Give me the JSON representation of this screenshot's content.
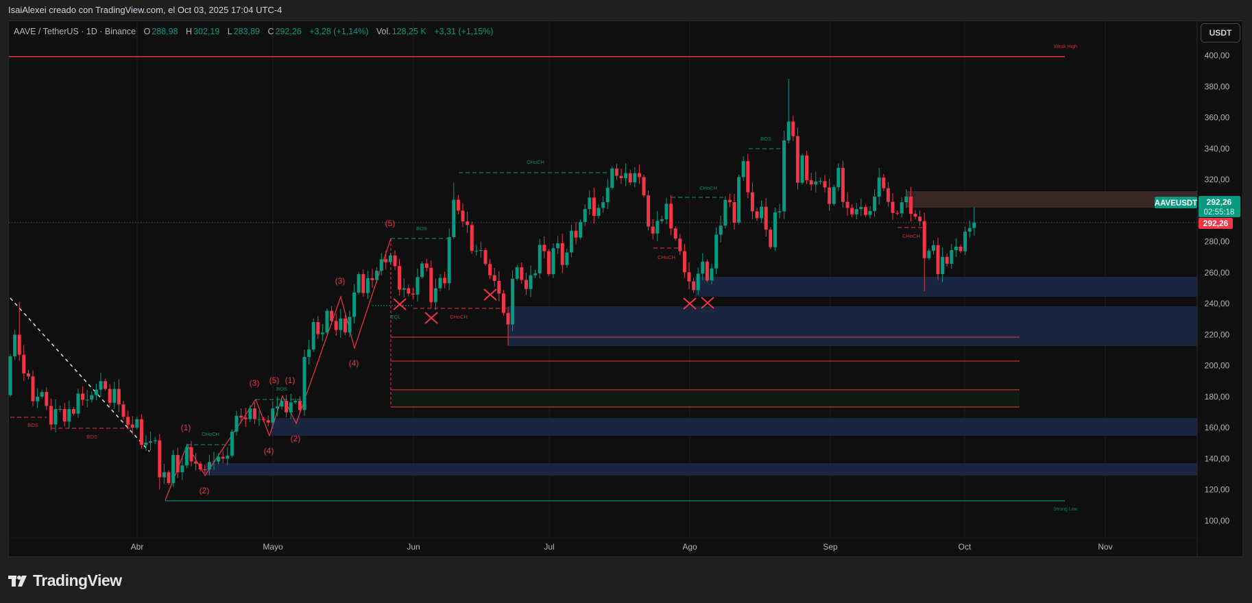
{
  "credit": "IsaiAlexei creado con TradingView.com, el Oct 03, 2025 17:04 UTC-4",
  "legend": {
    "symbol": "AAVE / TetherUS · 1D · Binance",
    "o_label": "O",
    "o": "288,98",
    "h_label": "H",
    "h": "302,19",
    "l_label": "L",
    "l": "283,89",
    "c_label": "C",
    "c": "292,26",
    "change": "+3,28 (+1,14%)",
    "vol_label": "Vol.",
    "vol": "128,25 K",
    "vol_change": "+3,31 (+1,15%)"
  },
  "currency_button": "USDT",
  "price_axis": {
    "ticks": [
      "400,00",
      "380,00",
      "360,00",
      "340,00",
      "320,00",
      "300,00",
      "280,00",
      "260,00",
      "240,00",
      "220,00",
      "200,00",
      "180,00",
      "160,00",
      "140,00",
      "120,00",
      "100,00"
    ],
    "symbol_tag": "AAVEUSDT",
    "last_price": "292,26",
    "countdown": "02:55:18",
    "prev_price": "292,26"
  },
  "brand": "TradingView",
  "colors": {
    "up": "#089981",
    "down": "#f23645",
    "zone_blue": "#1a2540",
    "zone_brown": "#3b2626",
    "zone_green": "#0f1a14"
  },
  "chart_data": {
    "type": "candlestick",
    "symbol": "AAVEUSDT",
    "interval": "1D",
    "first_date": "2025-03-04",
    "last_date": "2025-10-03",
    "x_tick_labels": [
      "Abr",
      "Mayo",
      "Jun",
      "Jul",
      "Ago",
      "Sep",
      "Oct",
      "Nov"
    ],
    "ylim": [
      100,
      400
    ],
    "first_open": 181,
    "close": [
      206,
      220,
      207,
      195,
      193,
      177,
      180,
      183,
      174,
      162,
      172,
      172,
      164,
      172,
      169,
      182,
      178,
      178,
      181,
      184.5,
      190,
      185,
      176,
      185,
      175,
      167,
      162,
      160,
      165.5,
      148.9,
      150.3,
      151.2,
      151.8,
      128,
      131.2,
      124.3,
      142.4,
      131.2,
      135.6,
      147.4,
      138.2,
      136.8,
      133.1,
      133,
      137.8,
      138.2,
      141.2,
      140,
      142,
      157.4,
      167.7,
      166.5,
      165.5,
      172.4,
      165.5,
      165.5,
      164.8,
      163.3,
      172.4,
      173.6,
      177.3,
      169.9,
      176.3,
      177.3,
      171.4,
      205.6,
      210.4,
      228.1,
      220.3,
      221.3,
      235.4,
      228.8,
      223,
      230.3,
      221.4,
      231.5,
      247.1,
      259,
      246.8,
      256.4,
      255.2,
      261.2,
      268.6,
      266.7,
      271.1,
      264.2,
      249,
      249.9,
      246.5,
      245.8,
      257.1,
      265.9,
      263.1,
      241,
      249.9,
      256.6,
      253.1,
      282.9,
      307,
      300,
      293,
      290.7,
      274,
      274,
      274.5,
      265.6,
      258.3,
      254.6,
      246.5,
      234,
      226.6,
      256,
      263.4,
      255.3,
      249.4,
      258.3,
      259.5,
      277.9,
      273.8,
      259,
      275.7,
      278.9,
      264.9,
      273,
      287,
      282.6,
      292.6,
      301,
      308.4,
      296.6,
      301.7,
      305.4,
      314.7,
      327.1,
      322.4,
      320.9,
      324.1,
      318.2,
      324.1,
      321.6,
      309.8,
      289.7,
      285.2,
      293.3,
      294.4,
      304.4,
      288.5,
      281.9,
      273.8,
      260.2,
      254.3,
      248.7,
      259.3,
      267.1,
      254.9,
      262.7,
      284.4,
      290.3,
      306.9,
      305.4,
      292.2,
      321.6,
      331.9,
      311.8,
      299.5,
      295.1,
      302.5,
      287.7,
      276.4,
      298.8,
      299.5,
      345.2,
      357.4,
      348,
      318,
      335.5,
      319.6,
      316.8,
      318.7,
      319,
      314.9,
      304.3,
      315.1,
      327.5,
      305.6,
      301.7,
      297.6,
      301,
      302.3,
      297.2,
      299.7,
      309,
      321.3,
      314.4,
      305.6,
      298.5,
      298.2,
      305.4,
      309,
      297.9,
      296.1,
      293.2,
      269.3,
      274.1,
      277.7,
      259,
      270.1,
      265.7,
      274.5,
      276.7,
      273.8,
      286.4,
      288.8,
      292.26
    ],
    "notable_highs": {
      "2": 241,
      "98": 318,
      "172": 385,
      "213": 302.19
    },
    "notable_lows": {
      "33": 120,
      "110": 213,
      "202": 248
    },
    "current_price": 292.26,
    "levels": [
      {
        "label": "Weak High",
        "price": 399.3,
        "color": "#f23645"
      },
      {
        "label": "Strong Low",
        "price": 112.8,
        "color": "#089981"
      }
    ],
    "zones": [
      {
        "kind": "demand",
        "top": 137.1,
        "bottom": 129.1
      },
      {
        "kind": "demand",
        "top": 166.2,
        "bottom": 154.8
      },
      {
        "kind": "demand",
        "top": 238.3,
        "bottom": 212.6
      },
      {
        "kind": "demand",
        "top": 257.3,
        "bottom": 244.5
      },
      {
        "kind": "supply",
        "top": 312.5,
        "bottom": 301.9
      },
      {
        "kind": "fvg",
        "top": 184.4,
        "bottom": 173.3
      }
    ],
    "fib_lines": [
      218.4,
      202.9,
      184.4,
      173.3
    ],
    "structure_labels": [
      "BOS",
      "BOS",
      "CHoCH",
      "BOS",
      "BOS",
      "EQL",
      "CHoCH",
      "CHoCH",
      "CHoCH",
      "CHoCH",
      "BOS",
      "CHoCH"
    ],
    "wave_labels": [
      "(1)",
      "(2)",
      "(3)",
      "(4)",
      "(5)",
      "(1)",
      "(2)",
      "(3)",
      "(4)",
      "(5)"
    ]
  }
}
